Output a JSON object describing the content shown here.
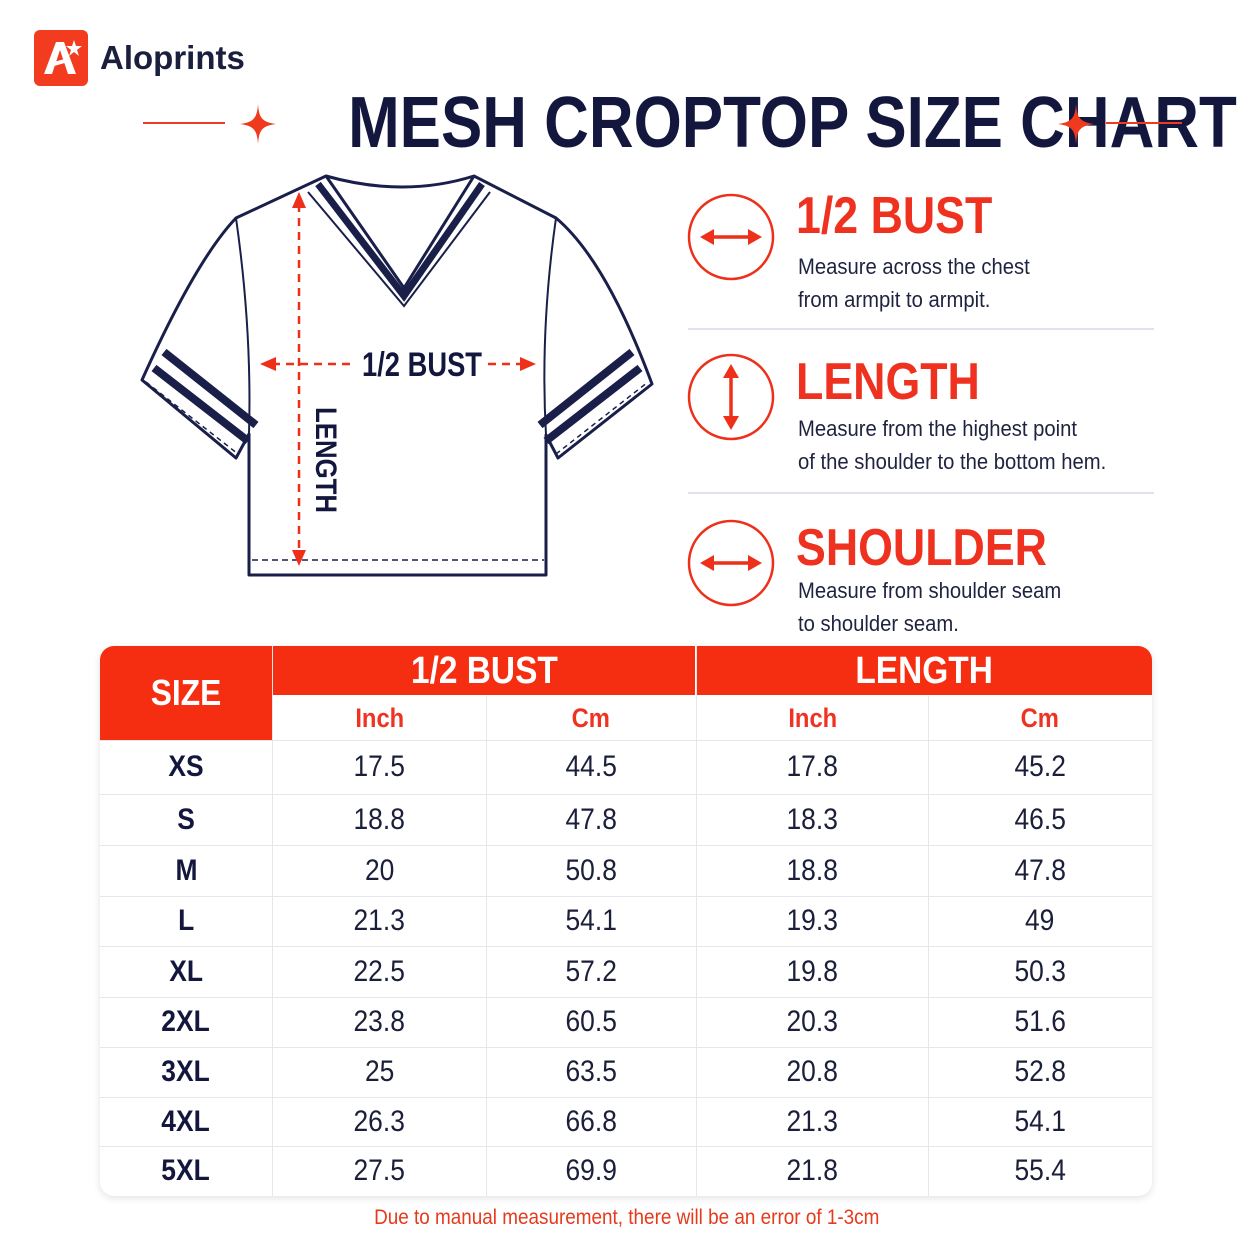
{
  "brand": {
    "name": "Aloprints",
    "accent": "#f23b1f"
  },
  "title": "MESH CROPTOP SIZE CHART",
  "diagram": {
    "bust_label": "1/2 BUST",
    "length_label": "LENGTH"
  },
  "guide": [
    {
      "heading": "1/2 BUST",
      "icon": "horizontal-arrow-icon",
      "lines": [
        "Measure across the chest",
        "from armpit to armpit."
      ]
    },
    {
      "heading": "LENGTH",
      "icon": "vertical-arrow-icon",
      "lines": [
        "Measure from the highest point",
        "of the shoulder to the bottom hem."
      ]
    },
    {
      "heading": "SHOULDER",
      "icon": "horizontal-arrow-icon",
      "lines": [
        "Measure from shoulder seam",
        "to shoulder seam."
      ]
    }
  ],
  "table": {
    "size_header": "SIZE",
    "groups": [
      "1/2 BUST",
      "LENGTH"
    ],
    "units": [
      "Inch",
      "Cm",
      "Inch",
      "Cm"
    ],
    "rows": [
      {
        "size": "XS",
        "bust_in": "17.5",
        "bust_cm": "44.5",
        "len_in": "17.8",
        "len_cm": "45.2"
      },
      {
        "size": "S",
        "bust_in": "18.8",
        "bust_cm": "47.8",
        "len_in": "18.3",
        "len_cm": "46.5"
      },
      {
        "size": "M",
        "bust_in": "20",
        "bust_cm": "50.8",
        "len_in": "18.8",
        "len_cm": "47.8"
      },
      {
        "size": "L",
        "bust_in": "21.3",
        "bust_cm": "54.1",
        "len_in": "19.3",
        "len_cm": "49"
      },
      {
        "size": "XL",
        "bust_in": "22.5",
        "bust_cm": "57.2",
        "len_in": "19.8",
        "len_cm": "50.3"
      },
      {
        "size": "2XL",
        "bust_in": "23.8",
        "bust_cm": "60.5",
        "len_in": "20.3",
        "len_cm": "51.6"
      },
      {
        "size": "3XL",
        "bust_in": "25",
        "bust_cm": "63.5",
        "len_in": "20.8",
        "len_cm": "52.8"
      },
      {
        "size": "4XL",
        "bust_in": "26.3",
        "bust_cm": "66.8",
        "len_in": "21.3",
        "len_cm": "54.1"
      },
      {
        "size": "5XL",
        "bust_in": "27.5",
        "bust_cm": "69.9",
        "len_in": "21.8",
        "len_cm": "55.4"
      }
    ]
  },
  "footnote": "Due to manual measurement, there will be an error of 1-3cm",
  "colors": {
    "red": "#f52e12",
    "navy": "#13173d",
    "divider": "#e4e7ec"
  }
}
